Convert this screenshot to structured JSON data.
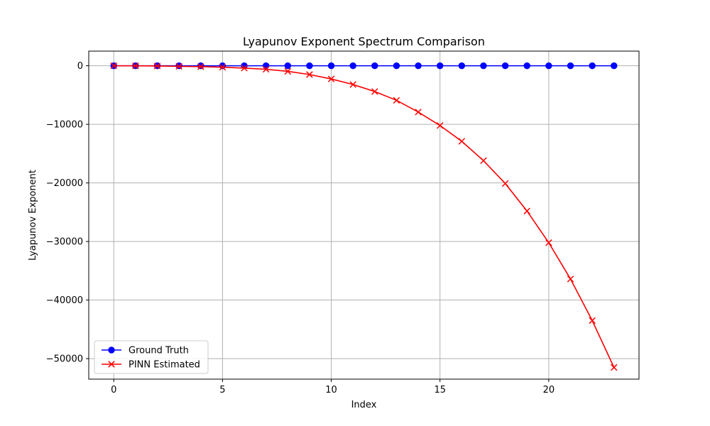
{
  "chart_data": {
    "type": "line",
    "title": "Lyapunov Exponent Spectrum Comparison",
    "xlabel": "Index",
    "ylabel": "Lyapunov Exponent",
    "xlim": [
      -1.15,
      24.15
    ],
    "ylim": [
      -53500,
      2500
    ],
    "xticks": [
      0,
      5,
      10,
      15,
      20
    ],
    "xtick_labels": [
      "0",
      "5",
      "10",
      "15",
      "20"
    ],
    "yticks": [
      0,
      -10000,
      -20000,
      -30000,
      -40000,
      -50000
    ],
    "ytick_labels": [
      "0",
      "−10000",
      "−20000",
      "−30000",
      "−40000",
      "−50000"
    ],
    "grid": true,
    "legend_position": "lower-left",
    "x": [
      0,
      1,
      2,
      3,
      4,
      5,
      6,
      7,
      8,
      9,
      10,
      11,
      12,
      13,
      14,
      15,
      16,
      17,
      18,
      19,
      20,
      21,
      22,
      23
    ],
    "series": [
      {
        "name": "Ground Truth",
        "color": "#0000ff",
        "marker": "circle",
        "values": [
          0,
          0,
          0,
          0,
          0,
          0,
          0,
          0,
          0,
          0,
          0,
          0,
          0,
          0,
          0,
          0,
          0,
          0,
          0,
          0,
          0,
          0,
          0,
          0
        ]
      },
      {
        "name": "PINN Estimated",
        "color": "#ff0000",
        "marker": "x",
        "values": [
          0,
          -10,
          -40,
          -100,
          -150,
          -250,
          -400,
          -600,
          -950,
          -1500,
          -2250,
          -3200,
          -4400,
          -5900,
          -7900,
          -10200,
          -12900,
          -16200,
          -20100,
          -24800,
          -30200,
          -36400,
          -43500,
          -51500
        ]
      }
    ]
  }
}
